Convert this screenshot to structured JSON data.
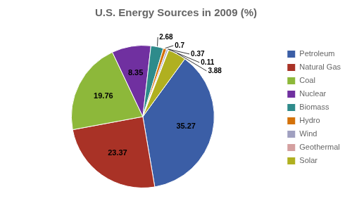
{
  "chart_data": {
    "type": "pie",
    "title": "U.S. Energy Sources in 2009 (%)",
    "categories": [
      "Petroleum",
      "Natural Gas",
      "Coal",
      "Nuclear",
      "Biomass",
      "Hydro",
      "Wind",
      "Geothermal",
      "Solar"
    ],
    "values": [
      35.27,
      23.37,
      19.76,
      8.35,
      2.68,
      0.7,
      0.37,
      0.11,
      3.88
    ],
    "colors": [
      "#3B5EA6",
      "#A93226",
      "#8DB83A",
      "#7030A0",
      "#2E8B8B",
      "#D4720A",
      "#A0A0C0",
      "#D4A0A0",
      "#B0B020"
    ],
    "data_labels": true,
    "legend": "right"
  }
}
